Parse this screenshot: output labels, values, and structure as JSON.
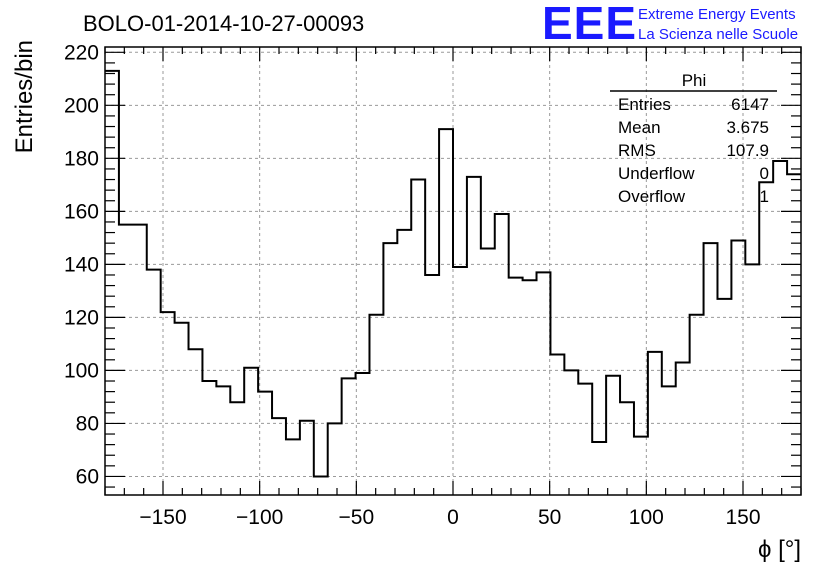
{
  "chart_data": {
    "type": "bar",
    "title": "BOLO-01-2014-10-27-00093",
    "xlabel": "ϕ [°]",
    "ylabel": "Entries/bin",
    "xlim": [
      -180,
      180
    ],
    "ylim": [
      53,
      222
    ],
    "x_ticks": [
      -150,
      -100,
      -50,
      0,
      50,
      100,
      150
    ],
    "y_ticks": [
      60,
      80,
      100,
      120,
      140,
      160,
      180,
      200,
      220
    ],
    "grid": true,
    "bin_width": 7.2,
    "values": [
      213,
      155,
      155,
      138,
      122,
      118,
      108,
      96,
      94,
      88,
      101,
      92,
      82,
      74,
      81,
      60,
      80,
      97,
      99,
      121,
      148,
      153,
      172,
      136,
      191,
      139,
      173,
      146,
      159,
      135,
      134,
      137,
      106,
      100,
      95,
      73,
      98,
      88,
      75,
      107,
      94,
      103,
      121,
      148,
      127,
      149,
      140,
      171,
      179,
      174
    ],
    "stats_box": {
      "name": "Phi",
      "rows": [
        {
          "label": "Entries",
          "value": "6147"
        },
        {
          "label": "Mean",
          "value": "3.675"
        },
        {
          "label": "RMS",
          "value": "107.9"
        },
        {
          "label": "Underflow",
          "value": "0"
        },
        {
          "label": "Overflow",
          "value": "1"
        }
      ]
    }
  },
  "logo": {
    "text": "EEE",
    "line1": "Extreme Energy Events",
    "line2": "La Scienza nelle Scuole",
    "color": "#1a1aff"
  }
}
